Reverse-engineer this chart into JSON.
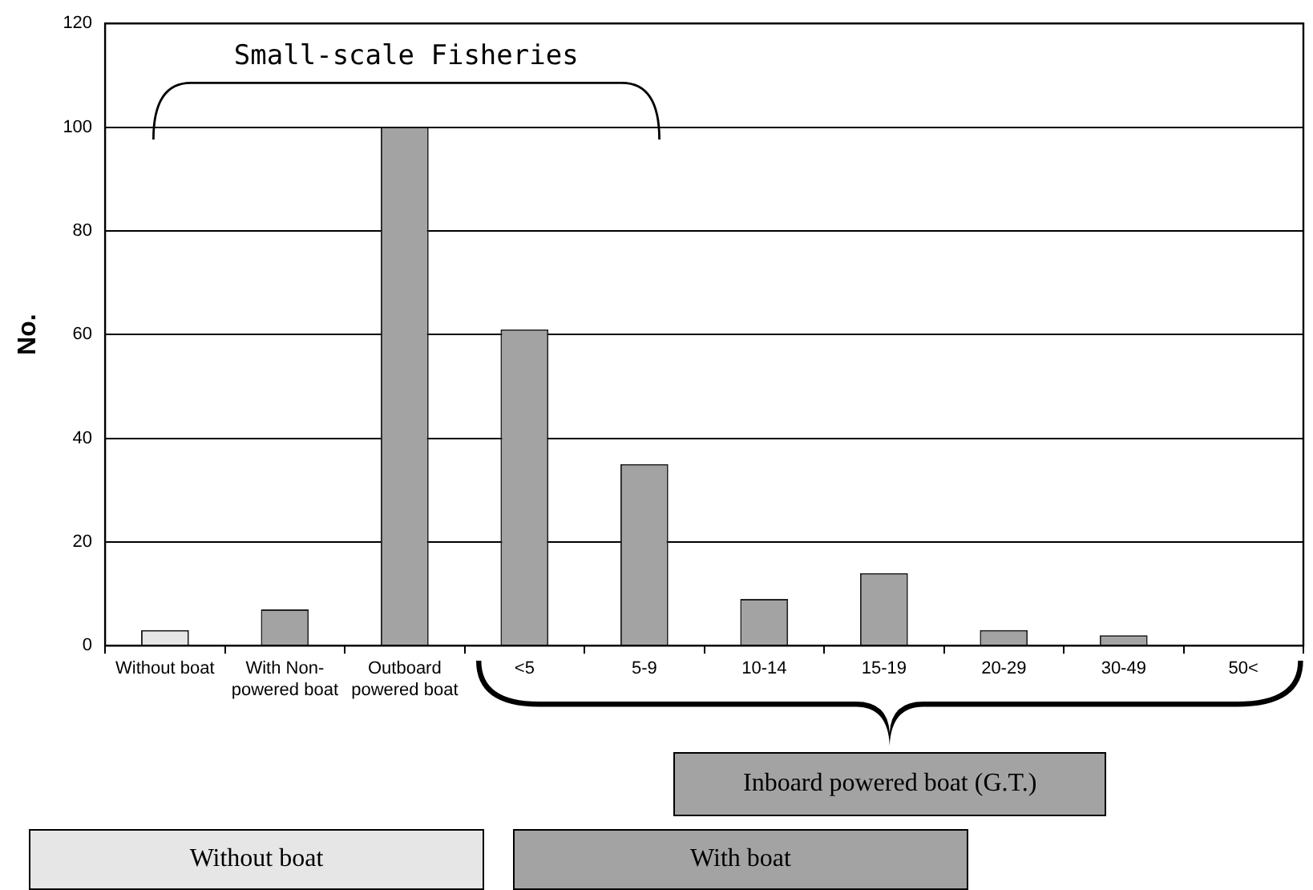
{
  "chart_data": {
    "type": "bar",
    "ylabel": "No.",
    "categories": [
      "Without boat",
      "With Non-powered boat",
      "Outboard powered boat",
      "<5",
      "5-9",
      "10-14",
      "15-19",
      "20-29",
      "30-49",
      "50<"
    ],
    "series": [
      {
        "name": "Without boat",
        "color": "#e6e6e6",
        "values": [
          3,
          null,
          null,
          null,
          null,
          null,
          null,
          null,
          null,
          null
        ]
      },
      {
        "name": "With boat",
        "color": "#a3a3a3",
        "values": [
          null,
          7,
          100,
          61,
          35,
          9,
          14,
          3,
          2,
          0
        ]
      }
    ],
    "ylim": [
      0,
      120
    ],
    "yticks": [
      0,
      20,
      40,
      60,
      80,
      100,
      120
    ],
    "grid": "y",
    "legend": "bottom",
    "annotations": [
      "Small-scale Fisheries",
      "Inboard powered boat (G.T.)"
    ]
  }
}
